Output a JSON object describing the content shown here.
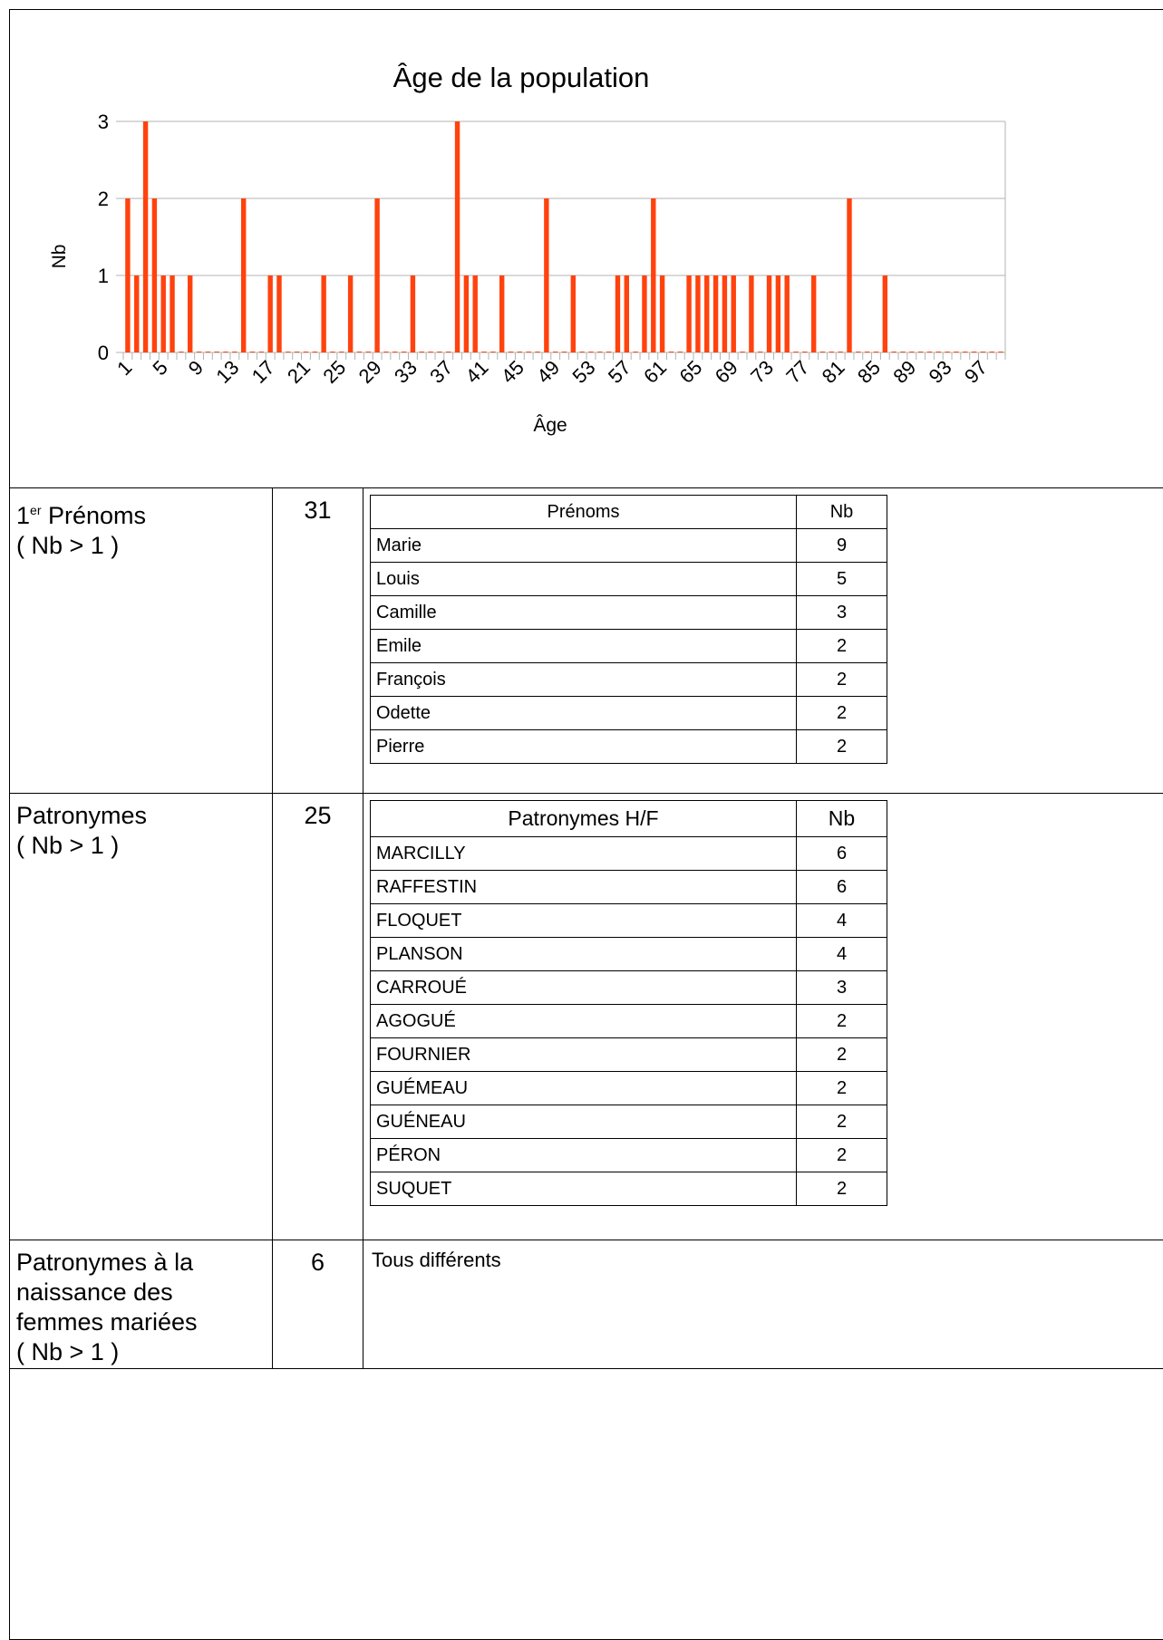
{
  "chart_data": {
    "type": "bar",
    "title": "Âge de la population",
    "xlabel": "Âge",
    "ylabel": "Nb",
    "ylim": [
      0,
      3
    ],
    "yticks": [
      0,
      1,
      2,
      3
    ],
    "xtick_labels": [
      "1",
      "5",
      "9",
      "13",
      "17",
      "21",
      "25",
      "29",
      "33",
      "37",
      "41",
      "45",
      "49",
      "53",
      "57",
      "61",
      "65",
      "69",
      "73",
      "77",
      "81",
      "85",
      "89",
      "93",
      "97"
    ],
    "grid": true,
    "color": "#ff420e",
    "categories": [
      1,
      2,
      3,
      4,
      5,
      6,
      7,
      8,
      9,
      10,
      11,
      12,
      13,
      14,
      15,
      16,
      17,
      18,
      19,
      20,
      21,
      22,
      23,
      24,
      25,
      26,
      27,
      28,
      29,
      30,
      31,
      32,
      33,
      34,
      35,
      36,
      37,
      38,
      39,
      40,
      41,
      42,
      43,
      44,
      45,
      46,
      47,
      48,
      49,
      50,
      51,
      52,
      53,
      54,
      55,
      56,
      57,
      58,
      59,
      60,
      61,
      62,
      63,
      64,
      65,
      66,
      67,
      68,
      69,
      70,
      71,
      72,
      73,
      74,
      75,
      76,
      77,
      78,
      79,
      80,
      81,
      82,
      83,
      84,
      85,
      86,
      87,
      88,
      89,
      90,
      91,
      92,
      93,
      94,
      95,
      96,
      97,
      98,
      99
    ],
    "values": [
      2,
      1,
      3,
      2,
      1,
      1,
      0,
      1,
      0,
      0,
      0,
      0,
      0,
      2,
      0,
      0,
      1,
      1,
      0,
      0,
      0,
      0,
      1,
      0,
      0,
      1,
      0,
      0,
      2,
      0,
      0,
      0,
      1,
      0,
      0,
      0,
      0,
      3,
      1,
      1,
      0,
      0,
      1,
      0,
      0,
      0,
      0,
      2,
      0,
      0,
      1,
      0,
      0,
      0,
      0,
      1,
      1,
      0,
      1,
      2,
      1,
      0,
      0,
      1,
      1,
      1,
      1,
      1,
      1,
      0,
      1,
      0,
      1,
      1,
      1,
      0,
      0,
      1,
      0,
      0,
      0,
      2,
      0,
      0,
      0,
      1,
      0,
      0,
      0,
      0,
      0,
      0,
      0,
      0,
      0,
      0,
      0,
      0,
      0
    ]
  },
  "rows": {
    "prenoms": {
      "label_prefix": "1",
      "label_sup": "er",
      "label_rest": " Prénoms",
      "label_line2": "( Nb > 1 )",
      "count": "31",
      "table_headers": [
        "Prénoms",
        "Nb"
      ],
      "table_rows": [
        [
          "Marie",
          "9"
        ],
        [
          "Louis",
          "5"
        ],
        [
          "Camille",
          "3"
        ],
        [
          "Emile",
          "2"
        ],
        [
          "François",
          "2"
        ],
        [
          "Odette",
          "2"
        ],
        [
          "Pierre",
          "2"
        ]
      ]
    },
    "patronymes": {
      "label_line1": "Patronymes",
      "label_line2": "( Nb > 1 )",
      "count": "25",
      "table_headers": [
        "Patronymes H/F",
        "Nb"
      ],
      "table_rows": [
        [
          "MARCILLY",
          "6"
        ],
        [
          "RAFFESTIN",
          "6"
        ],
        [
          "FLOQUET",
          "4"
        ],
        [
          "PLANSON",
          "4"
        ],
        [
          "CARROUÉ",
          "3"
        ],
        [
          "AGOGUÉ",
          "2"
        ],
        [
          "FOURNIER",
          "2"
        ],
        [
          "GUÉMEAU",
          "2"
        ],
        [
          "GUÉNEAU",
          "2"
        ],
        [
          "PÉRON",
          "2"
        ],
        [
          "SUQUET",
          "2"
        ]
      ]
    },
    "femmes": {
      "label_lines": [
        "Patronymes à la",
        "naissance des",
        "femmes mariées",
        "( Nb > 1 )"
      ],
      "count": "6",
      "note": "Tous différents"
    }
  }
}
